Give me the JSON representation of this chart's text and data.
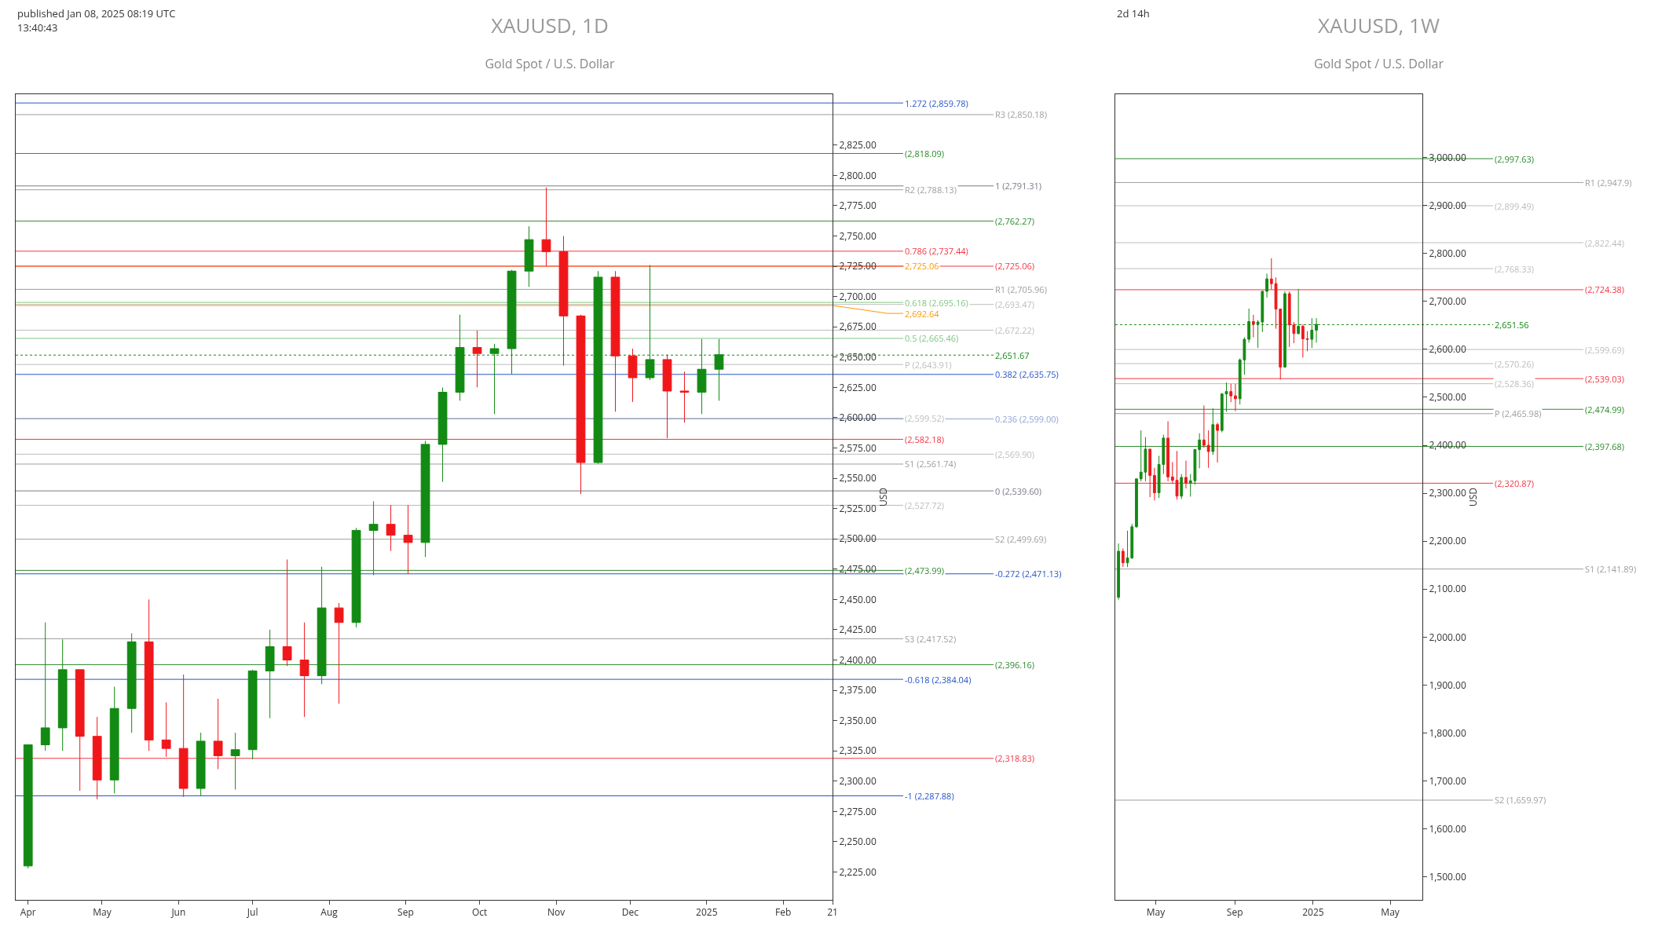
{
  "chart_data": [
    {
      "type": "candlestick",
      "title": "XAUUSD, 1D",
      "subtitle": "Gold Spot / U.S. Dollar",
      "ylabel": "USD",
      "colors": [
        "#138a13",
        "#138a13",
        "#138a13",
        "#f0171b",
        "#f0171b",
        "#138a13",
        "#138a13",
        "#f0171b",
        "#f0171b",
        "#f0171b",
        "#138a13",
        "#f0171b",
        "#138a13",
        "#138a13",
        "#138a13",
        "#f0171b",
        "#f0171b",
        "#138a13",
        "#f0171b",
        "#138a13",
        "#138a13",
        "#f0171b",
        "#f0171b",
        "#138a13",
        "#138a13",
        "#138a13",
        "#f0171b",
        "#138a13",
        "#138a13",
        "#138a13",
        "#f0171b",
        "#f0171b",
        "#f0171b",
        "#138a13",
        "#f0171b",
        "#f0171b",
        "#138a13",
        "#f0171b",
        "#f0171b",
        "#138a13",
        "#138a13"
      ],
      "x": [
        "2024-04-01",
        "2024-04-08",
        "2024-04-15",
        "2024-04-22",
        "2024-04-29",
        "2024-05-06",
        "2024-05-13",
        "2024-05-20",
        "2024-05-27",
        "2024-06-03",
        "2024-06-10",
        "2024-06-17",
        "2024-06-24",
        "2024-07-01",
        "2024-07-08",
        "2024-07-15",
        "2024-07-22",
        "2024-07-29",
        "2024-08-05",
        "2024-08-12",
        "2024-08-19",
        "2024-08-26",
        "2024-09-02",
        "2024-09-09",
        "2024-09-16",
        "2024-09-23",
        "2024-09-30",
        "2024-10-07",
        "2024-10-14",
        "2024-10-21",
        "2024-10-28",
        "2024-11-04",
        "2024-11-11",
        "2024-11-18",
        "2024-11-25",
        "2024-12-02",
        "2024-12-09",
        "2024-12-16",
        "2024-12-23",
        "2024-12-30",
        "2025-01-06"
      ],
      "ohlc": [
        [
          2230,
          2330,
          2228,
          2330
        ],
        [
          2330,
          2431,
          2325,
          2344
        ],
        [
          2344,
          2417,
          2325,
          2392
        ],
        [
          2392,
          2392,
          2292,
          2337
        ],
        [
          2337,
          2353,
          2285,
          2301
        ],
        [
          2301,
          2378,
          2290,
          2360
        ],
        [
          2360,
          2422,
          2340,
          2415
        ],
        [
          2415,
          2450,
          2325,
          2334
        ],
        [
          2334,
          2365,
          2320,
          2327
        ],
        [
          2327,
          2388,
          2287,
          2294
        ],
        [
          2294,
          2340,
          2288,
          2333
        ],
        [
          2333,
          2368,
          2310,
          2321
        ],
        [
          2321,
          2340,
          2293,
          2326
        ],
        [
          2326,
          2392,
          2318,
          2391
        ],
        [
          2391,
          2425,
          2352,
          2411
        ],
        [
          2411,
          2483,
          2395,
          2400
        ],
        [
          2400,
          2431,
          2353,
          2387
        ],
        [
          2387,
          2477,
          2380,
          2443
        ],
        [
          2443,
          2447,
          2364,
          2431
        ],
        [
          2431,
          2509,
          2427,
          2507
        ],
        [
          2507,
          2531,
          2470,
          2512
        ],
        [
          2512,
          2528,
          2490,
          2503
        ],
        [
          2503,
          2528,
          2471,
          2497
        ],
        [
          2497,
          2581,
          2485,
          2578
        ],
        [
          2578,
          2625,
          2547,
          2621
        ],
        [
          2621,
          2685,
          2614,
          2658
        ],
        [
          2658,
          2672,
          2625,
          2653
        ],
        [
          2653,
          2661,
          2603,
          2657
        ],
        [
          2657,
          2722,
          2636,
          2721
        ],
        [
          2721,
          2758,
          2708,
          2747
        ],
        [
          2747,
          2790,
          2725,
          2737
        ],
        [
          2737,
          2750,
          2643,
          2684
        ],
        [
          2684,
          2685,
          2537,
          2563
        ],
        [
          2563,
          2721,
          2562,
          2716
        ],
        [
          2716,
          2721,
          2605,
          2651
        ],
        [
          2651,
          2657,
          2613,
          2633
        ],
        [
          2633,
          2726,
          2631,
          2648
        ],
        [
          2648,
          2652,
          2583,
          2622
        ],
        [
          2622,
          2638,
          2596,
          2621
        ],
        [
          2621,
          2665,
          2603,
          2640
        ],
        [
          2640,
          2665,
          2614,
          2652
        ]
      ],
      "xlim": [
        "2024-03-27",
        "2025-02-21"
      ],
      "xticks": [
        {
          "value": "2024-04-01",
          "label": "Apr"
        },
        {
          "value": "2024-05-01",
          "label": "May"
        },
        {
          "value": "2024-06-01",
          "label": "Jun"
        },
        {
          "value": "2024-07-01",
          "label": "Jul"
        },
        {
          "value": "2024-08-01",
          "label": "Aug"
        },
        {
          "value": "2024-09-01",
          "label": "Sep"
        },
        {
          "value": "2024-10-01",
          "label": "Oct"
        },
        {
          "value": "2024-11-01",
          "label": "Nov"
        },
        {
          "value": "2024-12-01",
          "label": "Dec"
        },
        {
          "value": "2025-01-01",
          "label": "2025"
        },
        {
          "value": "2025-02-01",
          "label": "Feb"
        },
        {
          "value": "2025-02-21",
          "label": "21"
        }
      ],
      "ylim": [
        2202,
        2867
      ],
      "yticks": [
        {
          "value": 2225,
          "label": "2,225.00"
        },
        {
          "value": 2250,
          "label": "2,250.00"
        },
        {
          "value": 2275,
          "label": "2,275.00"
        },
        {
          "value": 2300,
          "label": "2,300.00"
        },
        {
          "value": 2325,
          "label": "2,325.00"
        },
        {
          "value": 2350,
          "label": "2,350.00"
        },
        {
          "value": 2375,
          "label": "2,375.00"
        },
        {
          "value": 2400,
          "label": "2,400.00"
        },
        {
          "value": 2425,
          "label": "2,425.00"
        },
        {
          "value": 2450,
          "label": "2,450.00"
        },
        {
          "value": 2475,
          "label": "2,475.00"
        },
        {
          "value": 2500,
          "label": "2,500.00"
        },
        {
          "value": 2525,
          "label": "2,525.00"
        },
        {
          "value": 2550,
          "label": "2,550.00"
        },
        {
          "value": 2575,
          "label": "2,575.00"
        },
        {
          "value": 2600,
          "label": "2,600.00"
        },
        {
          "value": 2625,
          "label": "2,625.00"
        },
        {
          "value": 2650,
          "label": "2,650.00"
        },
        {
          "value": 2675,
          "label": "2,675.00"
        },
        {
          "value": 2700,
          "label": "2,700.00"
        },
        {
          "value": 2725,
          "label": "2,725.00"
        },
        {
          "value": 2750,
          "label": "2,750.00"
        },
        {
          "value": 2775,
          "label": "2,775.00"
        },
        {
          "value": 2800,
          "label": "2,800.00"
        },
        {
          "value": 2825,
          "label": "2,825.00"
        }
      ],
      "ref_lines": [
        {
          "axis": "y",
          "value": 2859.78,
          "label": "1.272 (2,859.78)",
          "color": "#2a55c8"
        },
        {
          "axis": "y",
          "value": 2850.18,
          "label": "R3 (2,850.18)",
          "color": "#9e9e9e"
        },
        {
          "axis": "y",
          "value": 2818.09,
          "label": "(2,818.09)",
          "color": "#2e8b2e"
        },
        {
          "axis": "y",
          "value": 2791.31,
          "label": "1 (2,791.31)",
          "color": "#787b86"
        },
        {
          "axis": "y",
          "value": 2788.13,
          "label": "R2 (2,788.13)",
          "color": "#9e9e9e"
        },
        {
          "axis": "y",
          "value": 2762.27,
          "label": "(2,762.27)",
          "color": "#2e8b2e"
        },
        {
          "axis": "y",
          "value": 2737.44,
          "label": "0.786 (2,737.44)",
          "color": "#f23645"
        },
        {
          "axis": "y",
          "value": 2725.06,
          "label": "(2,725.06)",
          "color": "#f23645"
        },
        {
          "axis": "y",
          "value": 2725.06,
          "label": "2,725.06",
          "color": "#ff9800"
        },
        {
          "axis": "y",
          "value": 2705.96,
          "label": "R1 (2,705.96)",
          "color": "#9e9e9e"
        },
        {
          "axis": "y",
          "value": 2695.16,
          "label": "0.618 (2,695.16)",
          "color": "#81c784"
        },
        {
          "axis": "y",
          "value": 2693.47,
          "label": "(2,693.47)",
          "color": "#bdbdbd"
        },
        {
          "axis": "y",
          "value": 2692.64,
          "label": "2,692.64",
          "color": "#ff9800"
        },
        {
          "axis": "y",
          "value": 2672.22,
          "label": "(2,672.22)",
          "color": "#bdbdbd"
        },
        {
          "axis": "y",
          "value": 2665.46,
          "label": "0.5 (2,665.46)",
          "color": "#81c784"
        },
        {
          "axis": "y",
          "value": 2651.67,
          "label": "2,651.67",
          "color": "#138a13",
          "line_style": "dotted"
        },
        {
          "axis": "y",
          "value": 2643.91,
          "label": "P (2,643.91)",
          "color": "#bdbdbd"
        },
        {
          "axis": "y",
          "value": 2635.75,
          "label": "0.382 (2,635.75)",
          "color": "#2a55c8"
        },
        {
          "axis": "y",
          "value": 2599.52,
          "label": "(2,599.52)",
          "color": "#bdbdbd"
        },
        {
          "axis": "y",
          "value": 2599.0,
          "label": "0.236 (2,599.00)",
          "color": "#90a4d4"
        },
        {
          "axis": "y",
          "value": 2582.18,
          "label": "(2,582.18)",
          "color": "#f23645"
        },
        {
          "axis": "y",
          "value": 2569.9,
          "label": "(2,569.90)",
          "color": "#bdbdbd"
        },
        {
          "axis": "y",
          "value": 2561.74,
          "label": "S1 (2,561.74)",
          "color": "#9e9e9e"
        },
        {
          "axis": "y",
          "value": 2539.6,
          "label": "0 (2,539.60)",
          "color": "#787b86"
        },
        {
          "axis": "y",
          "value": 2527.72,
          "label": "(2,527.72)",
          "color": "#bdbdbd"
        },
        {
          "axis": "y",
          "value": 2499.69,
          "label": "S2 (2,499.69)",
          "color": "#9e9e9e"
        },
        {
          "axis": "y",
          "value": 2473.99,
          "label": "(2,473.99)",
          "color": "#2e8b2e"
        },
        {
          "axis": "y",
          "value": 2471.13,
          "label": "-0.272 (2,471.13)",
          "color": "#2a55c8"
        },
        {
          "axis": "y",
          "value": 2417.52,
          "label": "S3 (2,417.52)",
          "color": "#9e9e9e"
        },
        {
          "axis": "y",
          "value": 2396.16,
          "label": "(2,396.16)",
          "color": "#2e8b2e"
        },
        {
          "axis": "y",
          "value": 2384.04,
          "label": "-0.618 (2,384.04)",
          "color": "#2a55c8"
        },
        {
          "axis": "y",
          "value": 2318.83,
          "label": "(2,318.83)",
          "color": "#f23645"
        },
        {
          "axis": "y",
          "value": 2287.88,
          "label": "-1 (2,287.88)",
          "color": "#2a55c8"
        }
      ],
      "annotations": [
        "published Jan 08, 2025 08:19 UTC",
        "13:40:43"
      ]
    },
    {
      "type": "candlestick",
      "title": "XAUUSD, 1W",
      "subtitle": "Gold Spot / U.S. Dollar",
      "ylabel": "USD",
      "colors": [
        "#138a13",
        "#f0171b",
        "#138a13",
        "#138a13",
        "#138a13",
        "#138a13",
        "#138a13",
        "#f0171b",
        "#f0171b",
        "#138a13",
        "#138a13",
        "#f0171b",
        "#f0171b",
        "#f0171b",
        "#138a13",
        "#f0171b",
        "#138a13",
        "#138a13",
        "#138a13",
        "#f0171b",
        "#f0171b",
        "#138a13",
        "#f0171b",
        "#138a13",
        "#138a13",
        "#f0171b",
        "#f0171b",
        "#138a13",
        "#138a13",
        "#138a13",
        "#f0171b",
        "#138a13",
        "#138a13",
        "#138a13",
        "#f0171b",
        "#f0171b",
        "#f0171b",
        "#138a13",
        "#f0171b",
        "#f0171b",
        "#138a13",
        "#f0171b",
        "#f0171b",
        "#138a13",
        "#138a13"
      ],
      "x": [
        "2024-03-04",
        "2024-03-11",
        "2024-03-18",
        "2024-03-25",
        "2024-04-01",
        "2024-04-08",
        "2024-04-15",
        "2024-04-22",
        "2024-04-29",
        "2024-05-06",
        "2024-05-13",
        "2024-05-20",
        "2024-05-27",
        "2024-06-03",
        "2024-06-10",
        "2024-06-17",
        "2024-06-24",
        "2024-07-01",
        "2024-07-08",
        "2024-07-15",
        "2024-07-22",
        "2024-07-29",
        "2024-08-05",
        "2024-08-12",
        "2024-08-19",
        "2024-08-26",
        "2024-09-02",
        "2024-09-09",
        "2024-09-16",
        "2024-09-23",
        "2024-09-30",
        "2024-10-07",
        "2024-10-14",
        "2024-10-21",
        "2024-10-28",
        "2024-11-04",
        "2024-11-11",
        "2024-11-18",
        "2024-11-25",
        "2024-12-02",
        "2024-12-09",
        "2024-12-16",
        "2024-12-23",
        "2024-12-30",
        "2025-01-06"
      ],
      "ohlc": [
        [
          2083,
          2195,
          2078,
          2179
        ],
        [
          2179,
          2185,
          2146,
          2155
        ],
        [
          2155,
          2222,
          2146,
          2165
        ],
        [
          2165,
          2236,
          2163,
          2230
        ],
        [
          2230,
          2330,
          2228,
          2330
        ],
        [
          2330,
          2431,
          2325,
          2344
        ],
        [
          2344,
          2417,
          2325,
          2392
        ],
        [
          2392,
          2392,
          2292,
          2337
        ],
        [
          2337,
          2353,
          2285,
          2301
        ],
        [
          2301,
          2378,
          2290,
          2360
        ],
        [
          2360,
          2422,
          2340,
          2415
        ],
        [
          2415,
          2450,
          2325,
          2334
        ],
        [
          2334,
          2365,
          2320,
          2327
        ],
        [
          2327,
          2388,
          2287,
          2294
        ],
        [
          2294,
          2340,
          2288,
          2333
        ],
        [
          2333,
          2368,
          2310,
          2321
        ],
        [
          2321,
          2340,
          2293,
          2326
        ],
        [
          2326,
          2392,
          2318,
          2391
        ],
        [
          2391,
          2425,
          2352,
          2411
        ],
        [
          2411,
          2483,
          2395,
          2400
        ],
        [
          2400,
          2431,
          2353,
          2387
        ],
        [
          2387,
          2477,
          2380,
          2443
        ],
        [
          2443,
          2447,
          2364,
          2431
        ],
        [
          2431,
          2509,
          2427,
          2507
        ],
        [
          2507,
          2531,
          2470,
          2512
        ],
        [
          2512,
          2528,
          2490,
          2503
        ],
        [
          2503,
          2528,
          2471,
          2497
        ],
        [
          2497,
          2581,
          2485,
          2578
        ],
        [
          2578,
          2625,
          2547,
          2621
        ],
        [
          2621,
          2685,
          2614,
          2658
        ],
        [
          2658,
          2672,
          2625,
          2653
        ],
        [
          2653,
          2661,
          2603,
          2657
        ],
        [
          2657,
          2722,
          2636,
          2721
        ],
        [
          2721,
          2758,
          2708,
          2747
        ],
        [
          2747,
          2790,
          2725,
          2737
        ],
        [
          2737,
          2750,
          2643,
          2684
        ],
        [
          2684,
          2685,
          2537,
          2563
        ],
        [
          2563,
          2721,
          2562,
          2716
        ],
        [
          2716,
          2721,
          2605,
          2651
        ],
        [
          2651,
          2657,
          2613,
          2633
        ],
        [
          2633,
          2726,
          2631,
          2648
        ],
        [
          2648,
          2652,
          2583,
          2622
        ],
        [
          2622,
          2638,
          2596,
          2621
        ],
        [
          2621,
          2665,
          2603,
          2640
        ],
        [
          2640,
          2665,
          2614,
          2652
        ]
      ],
      "xlim": [
        "2024-02-28",
        "2025-06-20"
      ],
      "xticks": [
        {
          "value": "2024-05-01",
          "label": "May"
        },
        {
          "value": "2024-09-01",
          "label": "Sep"
        },
        {
          "value": "2025-01-01",
          "label": "2025"
        },
        {
          "value": "2025-05-01",
          "label": "May"
        }
      ],
      "ylim": [
        1452,
        3132
      ],
      "yticks": [
        {
          "value": 1500,
          "label": "1,500.00"
        },
        {
          "value": 1600,
          "label": "1,600.00"
        },
        {
          "value": 1700,
          "label": "1,700.00"
        },
        {
          "value": 1800,
          "label": "1,800.00"
        },
        {
          "value": 1900,
          "label": "1,900.00"
        },
        {
          "value": 2000,
          "label": "2,000.00"
        },
        {
          "value": 2100,
          "label": "2,100.00"
        },
        {
          "value": 2200,
          "label": "2,200.00"
        },
        {
          "value": 2300,
          "label": "2,300.00"
        },
        {
          "value": 2400,
          "label": "2,400.00"
        },
        {
          "value": 2500,
          "label": "2,500.00"
        },
        {
          "value": 2600,
          "label": "2,600.00"
        },
        {
          "value": 2700,
          "label": "2,700.00"
        },
        {
          "value": 2800,
          "label": "2,800.00"
        },
        {
          "value": 2900,
          "label": "2,900.00"
        },
        {
          "value": 3000,
          "label": "3,000.00"
        }
      ],
      "ref_lines": [
        {
          "axis": "y",
          "value": 2997.63,
          "label": "(2,997.63)",
          "color": "#2e8b2e"
        },
        {
          "axis": "y",
          "value": 2947.9,
          "label": "R1 (2,947.9)",
          "color": "#9e9e9e"
        },
        {
          "axis": "y",
          "value": 2899.49,
          "label": "(2,899.49)",
          "color": "#bdbdbd"
        },
        {
          "axis": "y",
          "value": 2822.44,
          "label": "(2,822.44)",
          "color": "#bdbdbd"
        },
        {
          "axis": "y",
          "value": 2768.33,
          "label": "(2,768.33)",
          "color": "#bdbdbd"
        },
        {
          "axis": "y",
          "value": 2724.38,
          "label": "(2,724.38)",
          "color": "#f23645"
        },
        {
          "axis": "y",
          "value": 2651.56,
          "label": "2,651.56",
          "color": "#138a13",
          "line_style": "dotted"
        },
        {
          "axis": "y",
          "value": 2599.69,
          "label": "(2,599.69)",
          "color": "#bdbdbd"
        },
        {
          "axis": "y",
          "value": 2570.26,
          "label": "(2,570.26)",
          "color": "#bdbdbd"
        },
        {
          "axis": "y",
          "value": 2539.03,
          "label": "(2,539.03)",
          "color": "#f23645"
        },
        {
          "axis": "y",
          "value": 2528.36,
          "label": "(2,528.36)",
          "color": "#bdbdbd"
        },
        {
          "axis": "y",
          "value": 2474.99,
          "label": "(2,474.99)",
          "color": "#2e8b2e"
        },
        {
          "axis": "y",
          "value": 2465.98,
          "label": "P (2,465.98)",
          "color": "#9e9e9e"
        },
        {
          "axis": "y",
          "value": 2397.68,
          "label": "(2,397.68)",
          "color": "#2e8b2e"
        },
        {
          "axis": "y",
          "value": 2320.87,
          "label": "(2,320.87)",
          "color": "#f23645"
        },
        {
          "axis": "y",
          "value": 2141.89,
          "label": "S1 (2,141.89)",
          "color": "#9e9e9e"
        },
        {
          "axis": "y",
          "value": 1659.97,
          "label": "S2 (1,659.97)",
          "color": "#9e9e9e"
        }
      ],
      "annotations": [
        "2d 14h"
      ]
    }
  ]
}
